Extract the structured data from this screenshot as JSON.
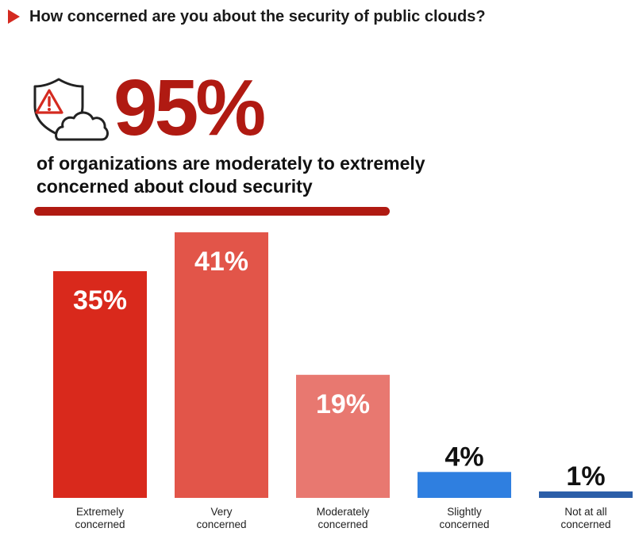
{
  "question": "How concerned are you about the security of public clouds?",
  "highlight": {
    "value": "95%",
    "text": "of organizations are moderately to extremely concerned about cloud security"
  },
  "icons": [
    "warning-shield-icon",
    "cloud-icon"
  ],
  "colors": {
    "accent": "#d42a20",
    "highlight": "#b01a12",
    "bars": [
      "#d9291c",
      "#e25549",
      "#e87870",
      "#2f7fe0",
      "#2b5ea8"
    ]
  },
  "chart_data": {
    "type": "bar",
    "categories": [
      "Extremely concerned",
      "Very concerned",
      "Moderately concerned",
      "Slightly concerned",
      "Not at all concerned"
    ],
    "category_lines": [
      [
        "Extremely",
        "concerned"
      ],
      [
        "Very",
        "concerned"
      ],
      [
        "Moderately",
        "concerned"
      ],
      [
        "Slightly",
        "concerned"
      ],
      [
        "Not at all",
        "concerned"
      ]
    ],
    "values": [
      35,
      41,
      19,
      4,
      1
    ],
    "value_labels": [
      "35%",
      "41%",
      "19%",
      "4%",
      "1%"
    ],
    "unit": "%",
    "grid": false,
    "legend": "none"
  }
}
